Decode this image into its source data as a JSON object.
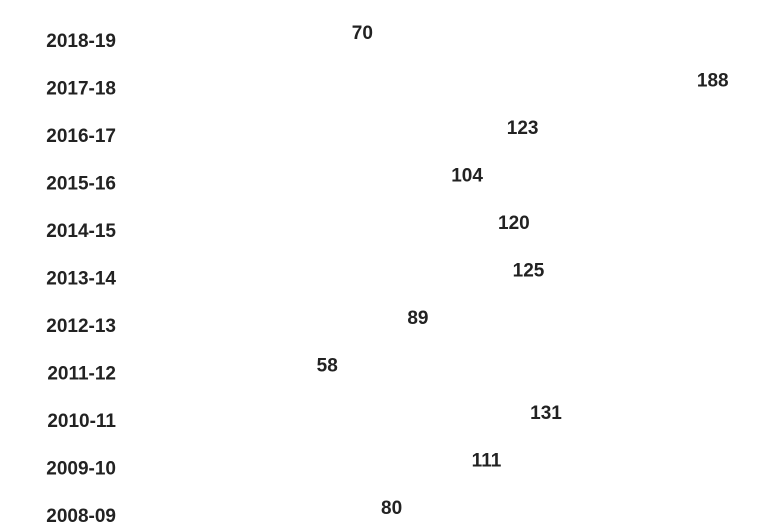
{
  "chart_data": {
    "type": "bar",
    "orientation": "horizontal",
    "categories": [
      "2018-19",
      "2017-18",
      "2016-17",
      "2015-16",
      "2014-15",
      "2013-14",
      "2012-13",
      "2011-12",
      "2010-11",
      "2009-10",
      "2008-09"
    ],
    "values": [
      70,
      188,
      123,
      104,
      120,
      125,
      89,
      58,
      131,
      111,
      80
    ],
    "title": "",
    "xlabel": "",
    "ylabel": "",
    "xlim": [
      0,
      200
    ],
    "grid": false,
    "legend": "none",
    "bar_fill": "photo of redwood forest (pictograph bars)",
    "colors": {
      "trunk": "#6b4a36",
      "foliage": "#5f8a4a",
      "sky": "#c9d9c0",
      "path": "#a87c5a",
      "gap": "#e4ebe0",
      "text": "#222222"
    }
  }
}
